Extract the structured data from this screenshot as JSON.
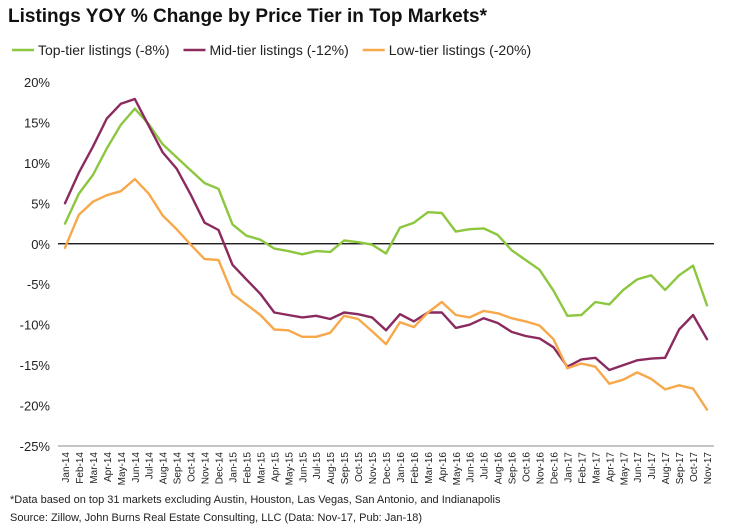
{
  "chart_data": {
    "type": "line",
    "title": "Listings YOY % Change by Price Tier in Top Markets*",
    "footnote": "*Data based on top 31 markets excluding Austin, Houston, Las Vegas, San Antonio, and Indianapolis",
    "source": "Source: Zillow, John Burns Real Estate Consulting, LLC (Data: Nov-17, Pub: Jan-18)",
    "ylim": [
      -25,
      20
    ],
    "yticks": [
      "20%",
      "15%",
      "10%",
      "5%",
      "0%",
      "-5%",
      "-10%",
      "-15%",
      "-20%",
      "-25%"
    ],
    "ytick_values": [
      20,
      15,
      10,
      5,
      0,
      -5,
      -10,
      -15,
      -20,
      -25
    ],
    "legend_position": "top-left",
    "grid": false,
    "categories": [
      "Jan-14",
      "Feb-14",
      "Mar-14",
      "Apr-14",
      "May-14",
      "Jun-14",
      "Jul-14",
      "Aug-14",
      "Sep-14",
      "Oct-14",
      "Nov-14",
      "Dec-14",
      "Jan-15",
      "Feb-15",
      "Mar-15",
      "Apr-15",
      "May-15",
      "Jun-15",
      "Jul-15",
      "Aug-15",
      "Sep-15",
      "Oct-15",
      "Nov-15",
      "Dec-15",
      "Jan-16",
      "Feb-16",
      "Mar-16",
      "Apr-16",
      "May-16",
      "Jun-16",
      "Jul-16",
      "Aug-16",
      "Sep-16",
      "Oct-16",
      "Nov-16",
      "Dec-16",
      "Jan-17",
      "Feb-17",
      "Mar-17",
      "Apr-17",
      "May-17",
      "Jun-17",
      "Jul-17",
      "Aug-17",
      "Sep-17",
      "Oct-17",
      "Nov-17"
    ],
    "series": [
      {
        "name": "Top-tier listings (-8%)",
        "color": "#8dc63f",
        "values": [
          2.5,
          6.2,
          8.5,
          11.8,
          14.7,
          16.7,
          14.8,
          12.3,
          10.7,
          9.1,
          7.5,
          6.8,
          2.4,
          1.0,
          0.5,
          -0.6,
          -0.9,
          -1.3,
          -0.9,
          -1.0,
          0.4,
          0.2,
          -0.1,
          -1.2,
          2.0,
          2.6,
          3.9,
          3.8,
          1.5,
          1.8,
          1.9,
          1.1,
          -0.8,
          -2.0,
          -3.2,
          -5.8,
          -8.9,
          -8.8,
          -7.2,
          -7.5,
          -5.7,
          -4.4,
          -3.9,
          -5.7,
          -3.9,
          -2.7,
          -7.6
        ]
      },
      {
        "name": "Mid-tier listings (-12%)",
        "color": "#8b2a5f",
        "values": [
          5.0,
          8.8,
          12.0,
          15.5,
          17.3,
          17.9,
          14.6,
          11.3,
          9.3,
          6.1,
          2.6,
          1.7,
          -2.6,
          -4.4,
          -6.2,
          -8.5,
          -8.8,
          -9.1,
          -8.9,
          -9.3,
          -8.5,
          -8.7,
          -9.1,
          -10.7,
          -8.7,
          -9.6,
          -8.5,
          -8.5,
          -10.4,
          -10.0,
          -9.2,
          -9.8,
          -10.9,
          -11.4,
          -11.7,
          -12.8,
          -15.2,
          -14.3,
          -14.1,
          -15.6,
          -15.0,
          -14.4,
          -14.2,
          -14.1,
          -10.6,
          -8.8,
          -11.8
        ]
      },
      {
        "name": "Low-tier listings (-20%)",
        "color": "#f7a84a",
        "values": [
          -0.5,
          3.6,
          5.2,
          6.0,
          6.5,
          8.0,
          6.2,
          3.5,
          1.8,
          -0.1,
          -1.9,
          -2.0,
          -6.2,
          -7.5,
          -8.8,
          -10.6,
          -10.7,
          -11.5,
          -11.5,
          -11.0,
          -8.9,
          -9.3,
          -10.8,
          -12.4,
          -9.7,
          -10.3,
          -8.5,
          -7.2,
          -8.8,
          -9.1,
          -8.3,
          -8.6,
          -9.2,
          -9.6,
          -10.1,
          -11.8,
          -15.4,
          -14.8,
          -15.2,
          -17.3,
          -16.8,
          -15.9,
          -16.7,
          -18.0,
          -17.5,
          -17.9,
          -20.5
        ]
      }
    ]
  }
}
